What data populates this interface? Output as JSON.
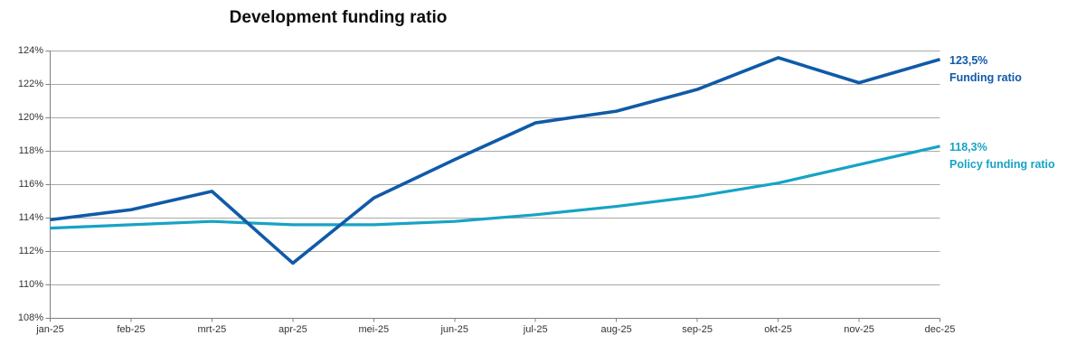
{
  "chart": {
    "title": "Development funding ratio"
  },
  "chart_data": {
    "type": "line",
    "title": "Development funding ratio",
    "categories": [
      "jan-25",
      "feb-25",
      "mrt-25",
      "apr-25",
      "mei-25",
      "jun-25",
      "jul-25",
      "aug-25",
      "sep-25",
      "okt-25",
      "nov-25",
      "dec-25"
    ],
    "series": [
      {
        "name": "Funding ratio",
        "values": [
          113.9,
          114.5,
          115.6,
          111.3,
          115.2,
          117.5,
          119.7,
          120.4,
          121.7,
          123.6,
          122.1,
          123.5
        ],
        "color": "#105AA8",
        "end_label": "123,5%"
      },
      {
        "name": "Policy funding ratio",
        "values": [
          113.4,
          113.6,
          113.8,
          113.6,
          113.6,
          113.8,
          114.2,
          114.7,
          115.3,
          116.1,
          117.2,
          118.3
        ],
        "color": "#16A3C5",
        "end_label": "118,3%"
      }
    ],
    "xlabel": "",
    "ylabel": "",
    "ylim": [
      108,
      124
    ],
    "y_ticks": [
      {
        "value": 108,
        "label": "108%"
      },
      {
        "value": 110,
        "label": "110%"
      },
      {
        "value": 112,
        "label": "112%"
      },
      {
        "value": 114,
        "label": "114%"
      },
      {
        "value": 116,
        "label": "116%"
      },
      {
        "value": 118,
        "label": "118%"
      },
      {
        "value": 120,
        "label": "120%"
      },
      {
        "value": 122,
        "label": "122%"
      },
      {
        "value": 124,
        "label": "124%"
      }
    ],
    "grid": "horizontal",
    "legend_position": "end-of-line-labels-right",
    "gridline_color": "#A9A9A9",
    "axis_color": "#808080",
    "tick_label_color": "#333333"
  }
}
